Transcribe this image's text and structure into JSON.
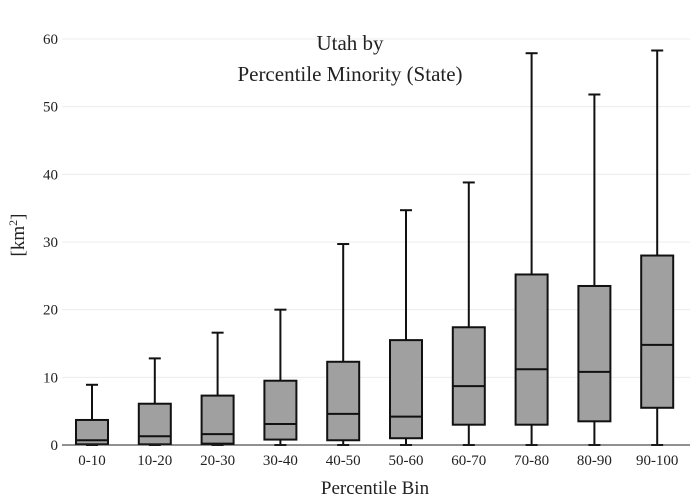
{
  "chart_data": {
    "type": "box",
    "title_lines": [
      "Utah  by",
      "Percentile Minority (State)"
    ],
    "xlabel": "Percentile Bin",
    "ylabel_base": "[km",
    "ylabel_sup": "2",
    "ylabel_close": "]",
    "ylim": [
      0,
      60
    ],
    "yticks": [
      0,
      10,
      20,
      30,
      40,
      50,
      60
    ],
    "grid": true,
    "box_color": "#a0a0a0",
    "line_color": "#111111",
    "categories": [
      "0-10",
      "10-20",
      "20-30",
      "30-40",
      "40-50",
      "50-60",
      "60-70",
      "70-80",
      "80-90",
      "90-100"
    ],
    "boxes": [
      {
        "min": 0,
        "q1": 0.1,
        "median": 0.7,
        "q3": 3.7,
        "max": 8.9
      },
      {
        "min": 0,
        "q1": 0.1,
        "median": 1.3,
        "q3": 6.1,
        "max": 12.8
      },
      {
        "min": 0,
        "q1": 0.2,
        "median": 1.6,
        "q3": 7.3,
        "max": 16.6
      },
      {
        "min": 0,
        "q1": 0.8,
        "median": 3.1,
        "q3": 9.5,
        "max": 20.0
      },
      {
        "min": 0,
        "q1": 0.7,
        "median": 4.6,
        "q3": 12.3,
        "max": 29.7
      },
      {
        "min": 0,
        "q1": 1.0,
        "median": 4.2,
        "q3": 15.5,
        "max": 34.7
      },
      {
        "min": 0,
        "q1": 3.0,
        "median": 8.7,
        "q3": 17.4,
        "max": 38.8
      },
      {
        "min": 0,
        "q1": 3.0,
        "median": 11.2,
        "q3": 25.2,
        "max": 57.9
      },
      {
        "min": 0,
        "q1": 3.5,
        "median": 10.8,
        "q3": 23.5,
        "max": 51.8
      },
      {
        "min": 0,
        "q1": 5.5,
        "median": 14.8,
        "q3": 28.0,
        "max": 58.3
      }
    ]
  }
}
